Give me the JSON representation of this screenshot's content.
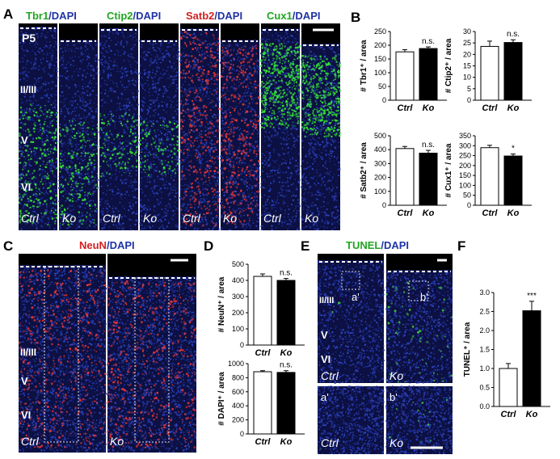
{
  "panels": {
    "A": "A",
    "B": "B",
    "C": "C",
    "D": "D",
    "E": "E",
    "F": "F"
  },
  "panelA": {
    "stage": "P5",
    "groups": [
      {
        "marker": "Tbr1",
        "color": "#2de02d"
      },
      {
        "marker": "Ctip2",
        "color": "#2de02d"
      },
      {
        "marker": "Satb2",
        "color": "#e02626"
      },
      {
        "marker": "Cux1",
        "color": "#2de02d"
      }
    ],
    "dapi": "DAPI",
    "slash": "/",
    "layers": [
      "II/III",
      "V",
      "VI"
    ],
    "ctrl": "Ctrl",
    "ko": "Ko"
  },
  "panelC": {
    "marker": "NeuN",
    "dapi": "DAPI",
    "slash": "/",
    "layers": [
      "II/III",
      "V",
      "VI"
    ],
    "ctrl": "Ctrl",
    "ko": "Ko"
  },
  "panelE": {
    "marker": "TUNEL",
    "dapi": "DAPI",
    "slash": "/",
    "layers": [
      "II/III",
      "V",
      "VI"
    ],
    "ctrl": "Ctrl",
    "ko": "Ko",
    "box_a": "a'",
    "box_b": "b'"
  },
  "chart_data": [
    {
      "type": "bar",
      "panel": "B",
      "ylabel": "# Tbr1⁺ / area",
      "categories": [
        "Ctrl",
        "Ko"
      ],
      "values": [
        176,
        188
      ],
      "errors": [
        8,
        6
      ],
      "ylim": [
        0,
        250
      ],
      "yticks": [
        0,
        50,
        100,
        150,
        200,
        250
      ],
      "significance": "n.s."
    },
    {
      "type": "bar",
      "panel": "B",
      "ylabel": "# Ctip2⁺ / area",
      "categories": [
        "Ctrl",
        "Ko"
      ],
      "values": [
        23.5,
        25.2
      ],
      "errors": [
        2.3,
        1.2
      ],
      "ylim": [
        0,
        30
      ],
      "yticks": [
        0,
        5,
        10,
        15,
        20,
        25,
        30
      ],
      "significance": "n.s."
    },
    {
      "type": "bar",
      "panel": "B",
      "ylabel": "# Satb2⁺ / area",
      "categories": [
        "Ctrl",
        "Ko"
      ],
      "values": [
        408,
        375
      ],
      "errors": [
        15,
        20
      ],
      "ylim": [
        0,
        500
      ],
      "yticks": [
        0,
        100,
        200,
        300,
        400,
        500
      ],
      "significance": "n.s."
    },
    {
      "type": "bar",
      "panel": "B",
      "ylabel": "# Cux1⁺ / area",
      "categories": [
        "Ctrl",
        "Ko"
      ],
      "values": [
        290,
        248
      ],
      "errors": [
        12,
        10
      ],
      "ylim": [
        0,
        350
      ],
      "yticks": [
        0,
        50,
        100,
        150,
        200,
        250,
        300,
        350
      ],
      "significance": "*"
    },
    {
      "type": "bar",
      "panel": "D",
      "ylabel": "# NeuN⁺ / area",
      "categories": [
        "Ctrl",
        "Ko"
      ],
      "values": [
        425,
        400
      ],
      "errors": [
        15,
        12
      ],
      "ylim": [
        0,
        500
      ],
      "yticks": [
        0,
        100,
        200,
        300,
        400,
        500
      ],
      "significance": "n.s."
    },
    {
      "type": "bar",
      "panel": "D",
      "ylabel": "# DAPI⁺ / area",
      "categories": [
        "Ctrl",
        "Ko"
      ],
      "values": [
        885,
        875
      ],
      "errors": [
        15,
        25
      ],
      "ylim": [
        0,
        1000
      ],
      "yticks": [
        0,
        200,
        400,
        600,
        800,
        1000
      ],
      "significance": "n.s."
    },
    {
      "type": "bar",
      "panel": "F",
      "ylabel": "TUNEL⁺ / area",
      "categories": [
        "Ctrl",
        "Ko"
      ],
      "values": [
        1.0,
        2.52
      ],
      "errors": [
        0.13,
        0.25
      ],
      "ylim": [
        0,
        3.0
      ],
      "yticks": [
        0.0,
        0.5,
        1.0,
        1.5,
        2.0,
        2.5,
        3.0
      ],
      "significance": "***"
    }
  ]
}
